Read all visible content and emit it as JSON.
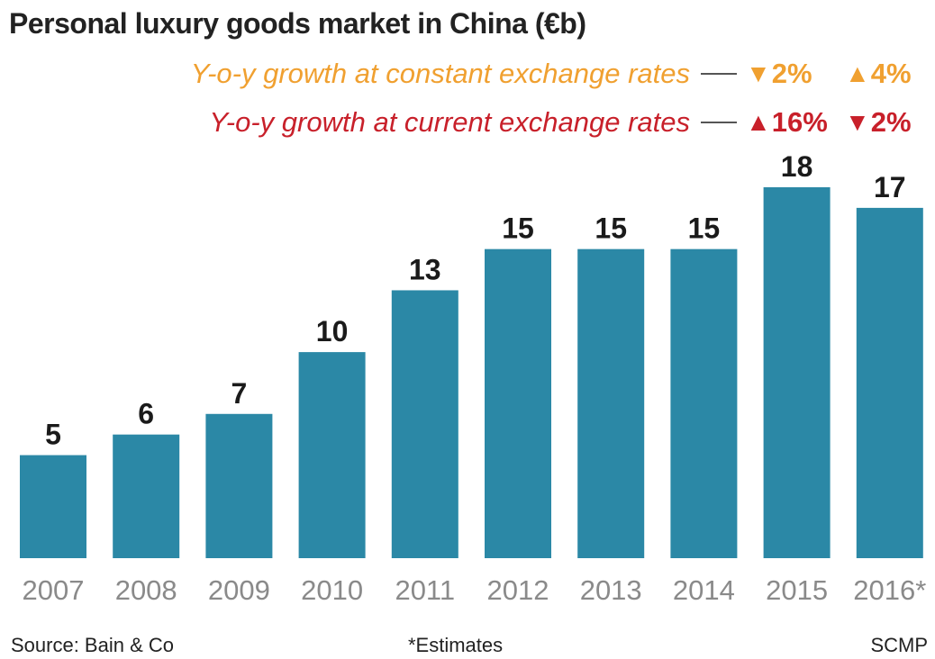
{
  "title": "Personal luxury goods market in China (€b)",
  "legend": {
    "constant": {
      "label": "Y-o-y growth at constant exchange rates",
      "color": "#f0a030",
      "values": [
        {
          "dir": "down",
          "text": "2%"
        },
        {
          "dir": "up",
          "text": "4%"
        }
      ]
    },
    "current": {
      "label": "Y-o-y growth at current exchange rates",
      "color": "#c8202a",
      "values": [
        {
          "dir": "up",
          "text": "16%"
        },
        {
          "dir": "down",
          "text": "2%"
        }
      ]
    }
  },
  "chart_data": {
    "type": "bar",
    "categories": [
      "2007",
      "2008",
      "2009",
      "2010",
      "2011",
      "2012",
      "2013",
      "2014",
      "2015",
      "2016*"
    ],
    "values": [
      5,
      6,
      7,
      10,
      13,
      15,
      15,
      15,
      18,
      17
    ],
    "ylim": [
      0,
      18
    ],
    "bar_color": "#2b88a6",
    "value_label_color": "#1a1a1a",
    "tick_label_color": "#8a8a8a",
    "grid": false
  },
  "footer": {
    "source": "Source: Bain & Co",
    "note": "*Estimates",
    "credit": "SCMP"
  },
  "icons": {
    "up": "up-triangle-icon",
    "down": "down-triangle-icon"
  }
}
